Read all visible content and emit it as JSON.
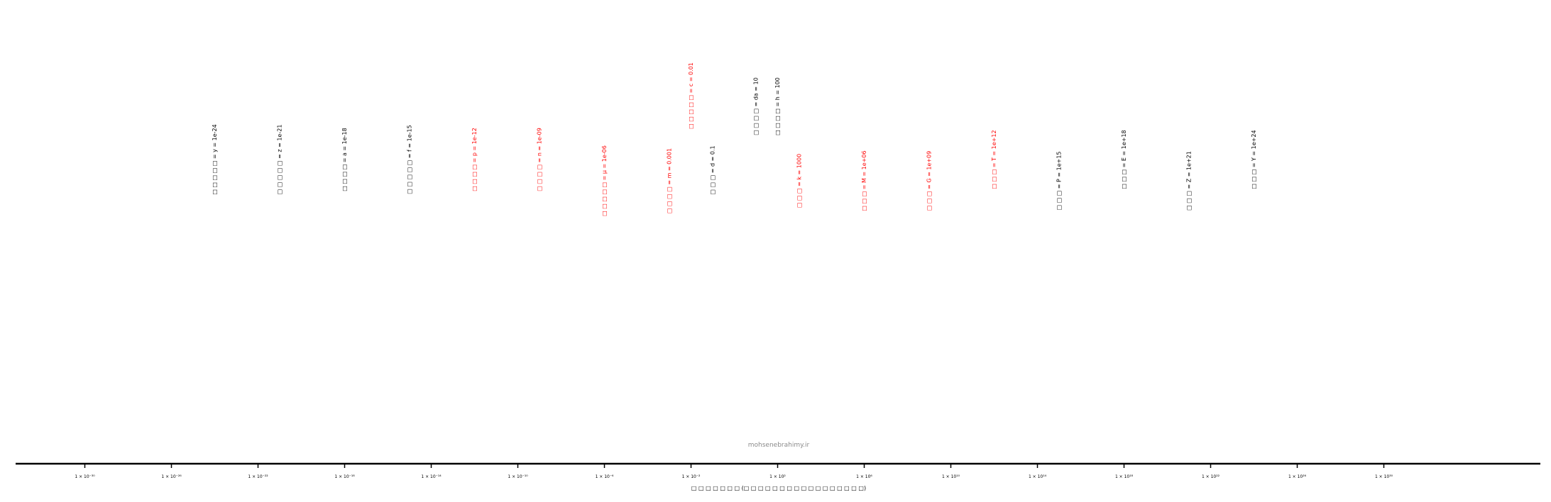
{
  "chart_data": {
    "type": "scatter",
    "title": "",
    "xlabel": "□ □ □ □ □ □ □ (□ □ □ □ □ □ □ □ □ □ □ □ □ □ □ □ □)",
    "ylabel": "",
    "xscale": "log",
    "xlim": [
      1e-32,
      1e+32
    ],
    "grid": false,
    "watermark": "mohsenebrahimy.ir",
    "ticks": [
      {
        "value": 1e-30,
        "label": "1 × 10⁻³⁰"
      },
      {
        "value": 1e-26,
        "label": "1 × 10⁻²⁶"
      },
      {
        "value": 1e-22,
        "label": "1 × 10⁻²²"
      },
      {
        "value": 1e-18,
        "label": "1 × 10⁻¹⁸"
      },
      {
        "value": 1e-14,
        "label": "1 × 10⁻¹⁴"
      },
      {
        "value": 1e-10,
        "label": "1 × 10⁻¹⁰"
      },
      {
        "value": 1e-06,
        "label": "1 × 10⁻⁶"
      },
      {
        "value": 0.01,
        "label": "1 × 10⁻²"
      },
      {
        "value": 100.0,
        "label": "1 × 10²"
      },
      {
        "value": 1000000.0,
        "label": "1 × 10⁶"
      },
      {
        "value": 10000000000.0,
        "label": "1 × 10¹⁰"
      },
      {
        "value": 100000000000000.0,
        "label": "1 × 10¹⁴"
      },
      {
        "value": 1e+18,
        "label": "1 × 10¹⁸"
      },
      {
        "value": 1e+22,
        "label": "1 × 10²²"
      },
      {
        "value": 1e+26,
        "label": "1 × 10²⁶"
      },
      {
        "value": 1e+30,
        "label": "1 × 10³⁰"
      }
    ],
    "colors": {
      "black": "#000000",
      "red": "#ff0000"
    },
    "prefixes": [
      {
        "value": 1e-24,
        "label": "□ □ □ □ □ = y = 1e-24",
        "color": "black",
        "y": 0.65
      },
      {
        "value": 1e-21,
        "label": "□ □ □ □ □ = z = 1e-21",
        "color": "black",
        "y": 0.65
      },
      {
        "value": 1e-18,
        "label": "□ □ □ □ = a = 1e-18",
        "color": "black",
        "y": 0.65
      },
      {
        "value": 1e-15,
        "label": "□ □ □ □ □ = f = 1e-15",
        "color": "black",
        "y": 0.65
      },
      {
        "value": 1e-12,
        "label": "□ □ □ □ = p = 1e-12",
        "color": "red",
        "y": 0.65
      },
      {
        "value": 1e-09,
        "label": "□ □ □ □ = n = 1e-09",
        "color": "red",
        "y": 0.65
      },
      {
        "value": 1e-06,
        "label": "□ □ □ □ □ = μ = 1e-06",
        "color": "red",
        "y": 0.55
      },
      {
        "value": 0.001,
        "label": "□ □ □ □ = m = 0.001",
        "color": "red",
        "y": 0.55
      },
      {
        "value": 0.01,
        "label": "□ □ □ □ □ = c = 0.01",
        "color": "red",
        "y": 0.95
      },
      {
        "value": 0.1,
        "label": "□ □ □ = d = 0.1",
        "color": "black",
        "y": 0.6
      },
      {
        "value": 10,
        "label": "□ □ □ □ = da = 10",
        "color": "black",
        "y": 0.9
      },
      {
        "value": 100,
        "label": "□ □ □ □ = h = 100",
        "color": "black",
        "y": 0.9
      },
      {
        "value": 1000,
        "label": "□ □ □ = k = 1000",
        "color": "red",
        "y": 0.55
      },
      {
        "value": 1000000,
        "label": "□ □ □ = M = 1e+06",
        "color": "red",
        "y": 0.55
      },
      {
        "value": 1000000000,
        "label": "□ □ □ = G = 1e+09",
        "color": "red",
        "y": 0.55
      },
      {
        "value": 1000000000000,
        "label": "□ □ □ = T = 1e+12",
        "color": "red",
        "y": 0.65
      },
      {
        "value": 1000000000000000.0,
        "label": "□ □ □ = P = 1e+15",
        "color": "black",
        "y": 0.55
      },
      {
        "value": 1e+18,
        "label": "□ □ □ = E = 1e+18",
        "color": "black",
        "y": 0.65
      },
      {
        "value": 1e+21,
        "label": "□ □ □ = Z = 1e+21",
        "color": "black",
        "y": 0.55
      },
      {
        "value": 1e+24,
        "label": "□ □ □ = Y = 1e+24",
        "color": "black",
        "y": 0.65
      }
    ]
  }
}
